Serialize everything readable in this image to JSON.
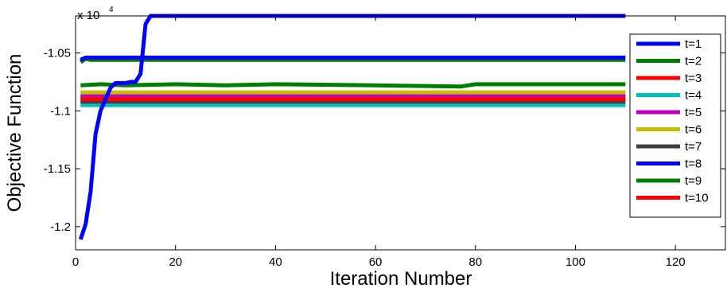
{
  "chart_data": {
    "type": "line",
    "title": "",
    "xlabel": "Iteration Number",
    "ylabel": "Objective Function",
    "y_scale_label": "x 10",
    "y_scale_exponent": "4",
    "xlim": [
      0,
      130
    ],
    "ylim": [
      -1.22,
      -1.018
    ],
    "xticks": [
      0,
      20,
      40,
      60,
      80,
      100,
      120
    ],
    "xtick_labels": [
      "0",
      "20",
      "40",
      "60",
      "80",
      "100",
      "120"
    ],
    "yticks": [
      -1.2,
      -1.15,
      -1.1,
      -1.05
    ],
    "ytick_labels": [
      "-1.2",
      "-1.15",
      "-1.1",
      "-1.05"
    ],
    "grid": false,
    "legend_position": "right",
    "series": [
      {
        "name": "t=1",
        "color": "#0000ff",
        "x": [
          1,
          2,
          3,
          4,
          5,
          6,
          7,
          8,
          9,
          10,
          11,
          12,
          13,
          14,
          15,
          20,
          40,
          60,
          80,
          100,
          110
        ],
        "y": [
          -1.211,
          -1.198,
          -1.17,
          -1.12,
          -1.1,
          -1.09,
          -1.08,
          -1.076,
          -1.076,
          -1.076,
          -1.075,
          -1.075,
          -1.068,
          -1.025,
          -1.018,
          -1.018,
          -1.018,
          -1.018,
          -1.018,
          -1.018,
          -1.018
        ]
      },
      {
        "name": "t=2",
        "color": "#008000",
        "x": [
          1,
          2,
          3,
          5,
          10,
          20,
          40,
          60,
          80,
          100,
          110
        ],
        "y": [
          -1.058,
          -1.055,
          -1.056,
          -1.056,
          -1.056,
          -1.056,
          -1.056,
          -1.056,
          -1.056,
          -1.056,
          -1.056
        ]
      },
      {
        "name": "t=3",
        "color": "#ff0000",
        "x": [
          1,
          5,
          10,
          20,
          40,
          60,
          80,
          100,
          110
        ],
        "y": [
          -1.089,
          -1.089,
          -1.089,
          -1.089,
          -1.089,
          -1.089,
          -1.089,
          -1.089,
          -1.089
        ]
      },
      {
        "name": "t=4",
        "color": "#00bfbf",
        "x": [
          1,
          5,
          10,
          20,
          40,
          60,
          80,
          100,
          110
        ],
        "y": [
          -1.095,
          -1.095,
          -1.095,
          -1.095,
          -1.095,
          -1.095,
          -1.095,
          -1.095,
          -1.095
        ]
      },
      {
        "name": "t=5",
        "color": "#bf00bf",
        "x": [
          1,
          5,
          10,
          20,
          40,
          60,
          80,
          100,
          110
        ],
        "y": [
          -1.087,
          -1.087,
          -1.087,
          -1.087,
          -1.087,
          -1.087,
          -1.087,
          -1.087,
          -1.087
        ]
      },
      {
        "name": "t=6",
        "color": "#bfbf00",
        "x": [
          1,
          5,
          10,
          20,
          40,
          60,
          80,
          100,
          110
        ],
        "y": [
          -1.084,
          -1.084,
          -1.084,
          -1.084,
          -1.084,
          -1.084,
          -1.084,
          -1.084,
          -1.084
        ]
      },
      {
        "name": "t=7",
        "color": "#404040",
        "x": [
          1,
          5,
          10,
          20,
          40,
          60,
          80,
          100,
          110
        ],
        "y": [
          -1.092,
          -1.092,
          -1.092,
          -1.092,
          -1.092,
          -1.092,
          -1.092,
          -1.092,
          -1.092
        ]
      },
      {
        "name": "t=8",
        "color": "#0000ff",
        "x": [
          1,
          2,
          3,
          5,
          10,
          20,
          40,
          60,
          80,
          100,
          110
        ],
        "y": [
          -1.056,
          -1.054,
          -1.054,
          -1.054,
          -1.054,
          -1.054,
          -1.054,
          -1.054,
          -1.054,
          -1.054,
          -1.054
        ]
      },
      {
        "name": "t=9",
        "color": "#008000",
        "x": [
          1,
          5,
          10,
          20,
          30,
          40,
          60,
          77,
          80,
          100,
          110
        ],
        "y": [
          -1.078,
          -1.077,
          -1.078,
          -1.077,
          -1.078,
          -1.077,
          -1.078,
          -1.079,
          -1.077,
          -1.077,
          -1.077
        ]
      },
      {
        "name": "t=10",
        "color": "#ff0000",
        "x": [
          1,
          5,
          10,
          20,
          40,
          60,
          80,
          100,
          110
        ],
        "y": [
          -1.09,
          -1.09,
          -1.09,
          -1.09,
          -1.09,
          -1.09,
          -1.09,
          -1.09,
          -1.09
        ]
      }
    ]
  }
}
